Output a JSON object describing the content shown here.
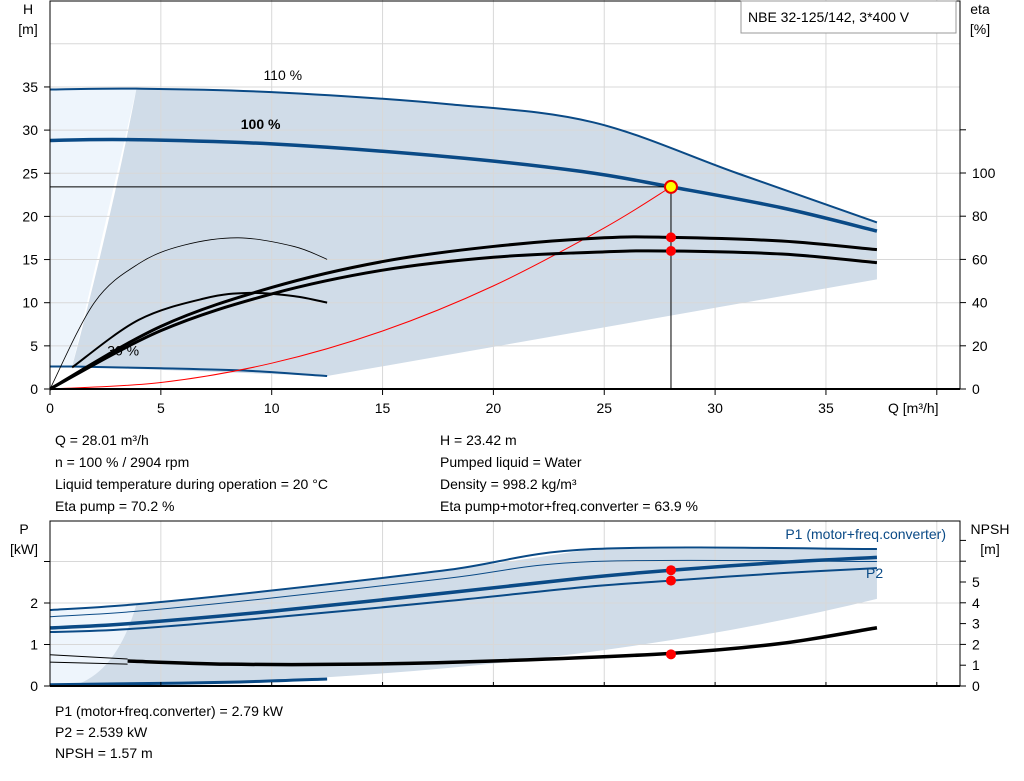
{
  "chart_data": [
    {
      "type": "line",
      "title": "NBE 32-125/142, 3*400 V",
      "xlabel": "Q [m³/h]",
      "ylabel": "H\n[m]",
      "ylabel_lines": [
        "H",
        "[m]"
      ],
      "y2label_lines": [
        "eta",
        "[%]"
      ],
      "xlim": [
        0,
        40
      ],
      "ylim": [
        0,
        40
      ],
      "y2lim": [
        0,
        180
      ],
      "xticks": [
        0,
        5,
        10,
        15,
        20,
        25,
        30,
        35
      ],
      "yticks": [
        0,
        5,
        10,
        15,
        20,
        25,
        30,
        35
      ],
      "y2ticks": [
        0,
        20,
        40,
        60,
        80,
        100
      ],
      "grid": true,
      "colors": {
        "curve": "#0a4a86",
        "area": "#d0dce8",
        "area_light": "#eef5fc",
        "system": "#ff0000",
        "eta": "#000000"
      },
      "curve_labels": [
        {
          "text": "110 %",
          "at": [
            10.5,
            35.8
          ]
        },
        {
          "text": "100 %",
          "at": [
            9.5,
            30.1
          ]
        },
        {
          "text": "30 %",
          "at": [
            3.3,
            3.9
          ]
        }
      ],
      "series": [
        {
          "label": "110 %",
          "axis": "H",
          "points": [
            [
              0,
              34.7
            ],
            [
              3.9,
              34.8
            ],
            [
              10,
              34.4
            ],
            [
              18,
              33.0
            ],
            [
              24.5,
              30.9
            ],
            [
              31,
              25.0
            ],
            [
              37.3,
              19.3
            ]
          ]
        },
        {
          "label": "100 %",
          "axis": "H",
          "points": [
            [
              0,
              28.8
            ],
            [
              3.6,
              28.9
            ],
            [
              10,
              28.4
            ],
            [
              18,
              26.9
            ],
            [
              24,
              25.2
            ],
            [
              28.01,
              23.42
            ],
            [
              33,
              21.0
            ],
            [
              37.3,
              18.3
            ]
          ]
        },
        {
          "label": "30 %",
          "axis": "H",
          "points": [
            [
              0,
              2.6
            ],
            [
              1,
              2.6
            ],
            [
              5,
              2.4
            ],
            [
              9,
              2.1
            ],
            [
              12.5,
              1.5
            ]
          ]
        },
        {
          "axis": "H",
          "system_curve": true,
          "points": [
            [
              0,
              0
            ],
            [
              5,
              0.75
            ],
            [
              10,
              2.99
            ],
            [
              15,
              6.72
            ],
            [
              20,
              11.95
            ],
            [
              25,
              18.67
            ],
            [
              28.01,
              23.42
            ]
          ]
        },
        {
          "axis": "eta",
          "points": [
            [
              0,
              0
            ],
            [
              5,
              29
            ],
            [
              10,
              47
            ],
            [
              15,
              59
            ],
            [
              20,
              66
            ],
            [
              25,
              70
            ],
            [
              28.01,
              70.2
            ],
            [
              33,
              68.5
            ],
            [
              37.3,
              64.5
            ]
          ]
        },
        {
          "axis": "eta",
          "points": [
            [
              0,
              0
            ],
            [
              5,
              27
            ],
            [
              10,
              44
            ],
            [
              15,
              55
            ],
            [
              20,
              61
            ],
            [
              25,
              63.5
            ],
            [
              28.01,
              63.9
            ],
            [
              33,
              62.5
            ],
            [
              37.3,
              58.5
            ]
          ]
        },
        {
          "axis": "eta",
          "points": [
            [
              1,
              10
            ],
            [
              4,
              32
            ],
            [
              7,
              42
            ],
            [
              9,
              44.5
            ],
            [
              11,
              43
            ],
            [
              12.5,
              40
            ]
          ]
        },
        {
          "axis": "eta",
          "points": [
            [
              0,
              0
            ],
            [
              2,
              40
            ],
            [
              4,
              58
            ],
            [
              6,
              66.5
            ],
            [
              8.5,
              70
            ],
            [
              11,
              66
            ],
            [
              12.5,
              60
            ]
          ]
        }
      ],
      "operating_point": {
        "Q": 28.01,
        "H": 23.42,
        "eta_pump": 70.2,
        "eta_total": 63.9
      }
    },
    {
      "type": "line",
      "ylabel_lines": [
        "P",
        "[kW]"
      ],
      "y2label_lines": [
        "NPSH",
        "[m]"
      ],
      "xlim": [
        0,
        40
      ],
      "ylim": [
        0,
        4
      ],
      "y2lim": [
        0,
        8
      ],
      "yticks": [
        0,
        1,
        2
      ],
      "y2ticks": [
        0,
        1,
        2,
        3,
        4,
        5
      ],
      "grid": true,
      "series": [
        {
          "label": "P1 (motor+freq.converter)",
          "axis": "P",
          "points": [
            [
              0,
              1.83
            ],
            [
              3.9,
              1.97
            ],
            [
              10,
              2.3
            ],
            [
              18,
              2.8
            ],
            [
              24.5,
              3.3
            ],
            [
              37.3,
              3.3
            ]
          ]
        },
        {
          "axis": "P",
          "points": [
            [
              0,
              1.67
            ],
            [
              3.9,
              1.8
            ],
            [
              10,
              2.12
            ],
            [
              18,
              2.6
            ],
            [
              24.5,
              3.0
            ],
            [
              37.3,
              3.0
            ]
          ]
        },
        {
          "axis": "P",
          "points": [
            [
              0,
              1.4
            ],
            [
              3.5,
              1.5
            ],
            [
              10,
              1.8
            ],
            [
              18,
              2.25
            ],
            [
              24,
              2.6
            ],
            [
              28.01,
              2.79
            ],
            [
              33,
              2.98
            ],
            [
              37.3,
              3.1
            ]
          ]
        },
        {
          "label": "P2",
          "axis": "P",
          "points": [
            [
              0,
              1.3
            ],
            [
              3.5,
              1.37
            ],
            [
              10,
              1.65
            ],
            [
              18,
              2.05
            ],
            [
              24,
              2.38
            ],
            [
              28.01,
              2.539
            ],
            [
              33,
              2.72
            ],
            [
              37.3,
              2.84
            ]
          ]
        },
        {
          "axis": "P",
          "points": [
            [
              0,
              0.03
            ],
            [
              3,
              0.05
            ],
            [
              8,
              0.09
            ],
            [
              12.5,
              0.17
            ]
          ]
        },
        {
          "axis": "NPSH",
          "points": [
            [
              3.5,
              1.2
            ],
            [
              8,
              1.05
            ],
            [
              14,
              1.05
            ],
            [
              20,
              1.2
            ],
            [
              28.01,
              1.57
            ],
            [
              33,
              2.05
            ],
            [
              37.3,
              2.8
            ]
          ]
        },
        {
          "axis": "NPSH",
          "points": [
            [
              0,
              1.5
            ],
            [
              3.5,
              1.3
            ]
          ]
        },
        {
          "axis": "NPSH",
          "points": [
            [
              0,
              1.15
            ],
            [
              3.5,
              1.05
            ]
          ]
        }
      ],
      "operating_point": {
        "Q": 28.01,
        "P1": 2.79,
        "P2": 2.539,
        "NPSH": 1.57
      }
    }
  ],
  "info": {
    "left": [
      "Q = 28.01 m³/h",
      "n = 100 % / 2904 rpm",
      "Liquid temperature during operation = 20 °C",
      "Eta pump = 70.2 %"
    ],
    "right": [
      "H = 23.42 m",
      "Pumped liquid = Water",
      "Density = 998.2 kg/m³",
      "Eta pump+motor+freq.converter = 63.9 %"
    ],
    "bottom": [
      "P1 (motor+freq.converter) = 2.79 kW",
      "P2 = 2.539 kW",
      "NPSH = 1.57 m"
    ]
  }
}
